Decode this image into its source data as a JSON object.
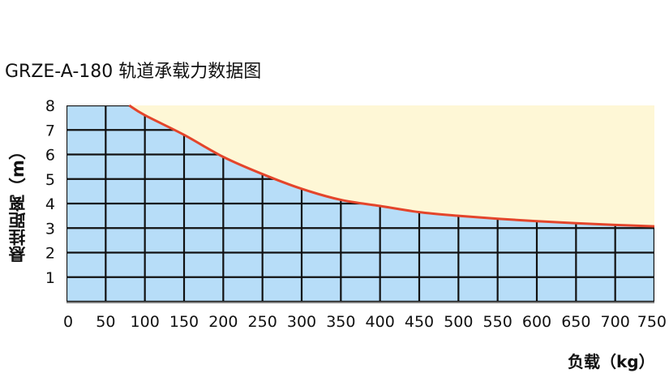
{
  "colors": {
    "unsafe_region": "#FEF7D6",
    "safe_region": "#B7DDF8",
    "grid": "#111111",
    "curve": "#E4452B",
    "axis_line": "#555555"
  },
  "chart_data": {
    "type": "area",
    "title": "GRZE-A-180 轨道承载力数据图",
    "xlabel": "负载（kg）",
    "ylabel": "悬挂距离（m）",
    "xlim": [
      0,
      750
    ],
    "ylim": [
      0,
      8
    ],
    "x_ticks": [
      0,
      50,
      100,
      150,
      200,
      250,
      300,
      350,
      400,
      450,
      500,
      550,
      600,
      650,
      700,
      750
    ],
    "y_ticks": [
      1,
      2,
      3,
      4,
      5,
      6,
      7,
      8
    ],
    "grid": true,
    "legend": "none",
    "series": [
      {
        "x": [
          80,
          100,
          150,
          200,
          250,
          300,
          350,
          400,
          450,
          500,
          550,
          600,
          650,
          700,
          750
        ],
        "y": [
          8,
          7.6,
          6.8,
          5.9,
          5.2,
          4.6,
          4.15,
          3.9,
          3.65,
          3.5,
          3.38,
          3.28,
          3.2,
          3.13,
          3.07
        ]
      }
    ]
  }
}
